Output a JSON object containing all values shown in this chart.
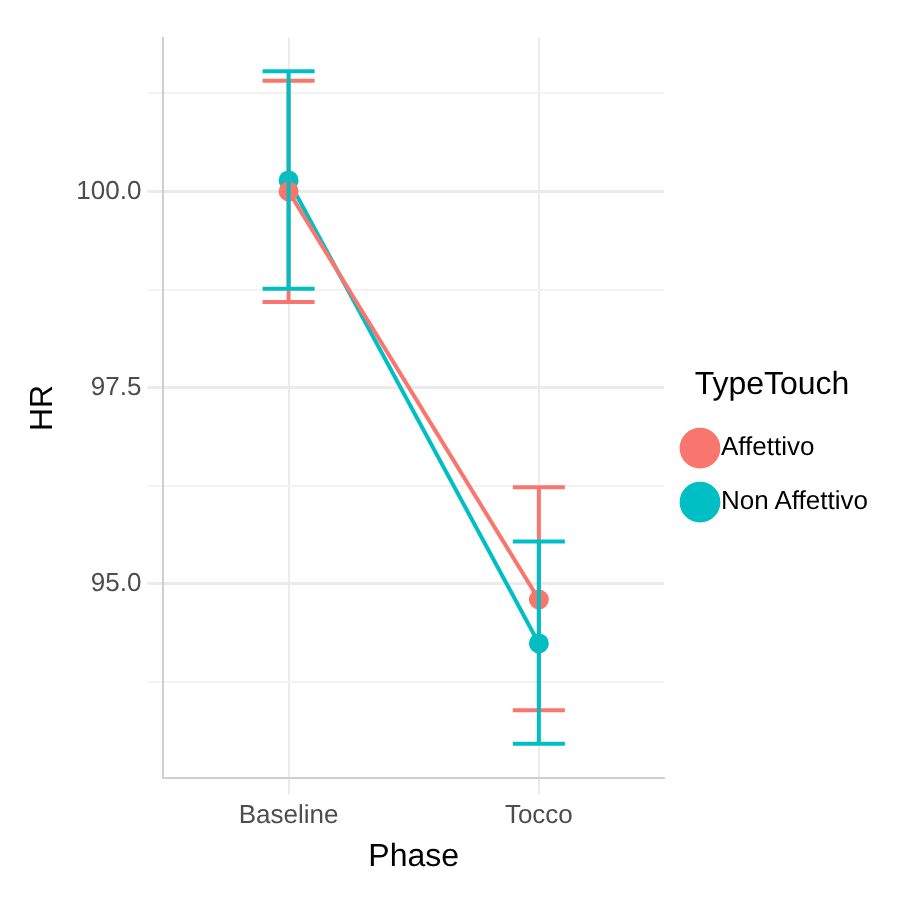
{
  "chart_data": {
    "type": "line",
    "xlabel": "Phase",
    "ylabel": "HR",
    "legend_title": "TypeTouch",
    "categories": [
      "Baseline",
      "Tocco"
    ],
    "series": [
      {
        "name": "Affettivo",
        "color": "#f8766d",
        "values": [
          100.0,
          94.8
        ],
        "errors": [
          [
            98.59,
            101.41
          ],
          [
            93.39,
            96.23
          ]
        ]
      },
      {
        "name": "Non Affettivo",
        "color": "#00bfc4",
        "values": [
          100.14,
          94.24
        ],
        "errors": [
          [
            98.76,
            101.53
          ],
          [
            92.96,
            95.54
          ]
        ]
      }
    ],
    "ylim": [
      92.52,
      101.96
    ],
    "yticks": [
      {
        "value": 93.75,
        "label": null
      },
      {
        "value": 95,
        "label": "95.0"
      },
      {
        "value": 96.25,
        "label": null
      },
      {
        "value": 97.5,
        "label": "97.5"
      },
      {
        "value": 98.75,
        "label": null
      },
      {
        "value": 100,
        "label": "100.0"
      },
      {
        "value": 101.25,
        "label": null
      }
    ],
    "grid": true,
    "legend": "right",
    "marker": "circle",
    "line_style": "solid"
  }
}
